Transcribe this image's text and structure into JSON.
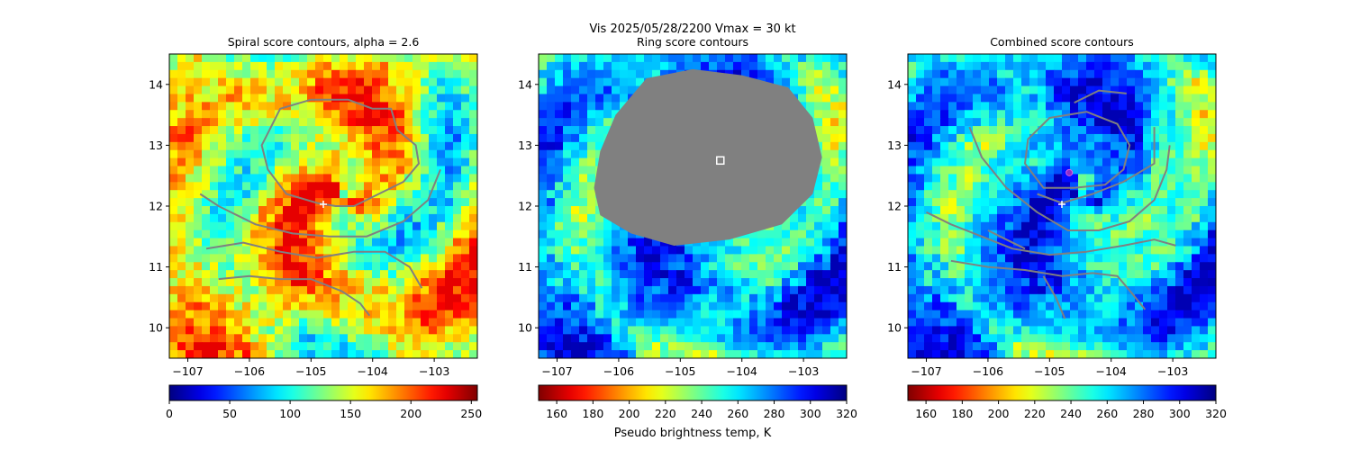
{
  "figure": {
    "suptitle_line1": "Vis  2025/05/28/2200    Vmax = 30 kt",
    "colorbar_label": "Pseudo brightness temp, K"
  },
  "colors": {
    "contour": "#808080",
    "masked_fill": "#808080",
    "center_marker": "#ffffff",
    "circle_marker": "#8b2fc9"
  },
  "chart_data": [
    {
      "type": "heatmap",
      "title": "Spiral score contours, alpha =  2.6",
      "colormap": "jet",
      "xlim": [
        -107.3,
        -102.3
      ],
      "ylim": [
        9.5,
        14.5
      ],
      "x_ticks": [
        -107,
        -106,
        -105,
        -104,
        -103
      ],
      "x_tick_labels": [
        "−107",
        "−106",
        "−105",
        "−104",
        "−103"
      ],
      "y_ticks": [
        10,
        11,
        12,
        13,
        14
      ],
      "y_tick_labels": [
        "10",
        "11",
        "12",
        "13",
        "14"
      ],
      "colorbar": {
        "cmap": "jet",
        "range": [
          0,
          255
        ],
        "ticks": [
          0,
          50,
          100,
          150,
          200,
          250
        ],
        "tick_labels": [
          "0",
          "50",
          "100",
          "150",
          "200",
          "250"
        ]
      },
      "markers": [
        {
          "kind": "plus",
          "lon": -104.8,
          "lat": 12.03
        }
      ],
      "contours": [
        [
          [
            -104.3,
            12.0
          ],
          [
            -103.5,
            12.4
          ],
          [
            -103.25,
            12.7
          ],
          [
            -103.3,
            13.0
          ],
          [
            -103.6,
            13.25
          ],
          [
            -103.7,
            13.6
          ],
          [
            -104.0,
            13.6
          ],
          [
            -104.4,
            13.75
          ],
          [
            -105.0,
            13.75
          ],
          [
            -105.5,
            13.6
          ],
          [
            -105.65,
            13.3
          ],
          [
            -105.8,
            13.0
          ],
          [
            -105.7,
            12.6
          ],
          [
            -105.4,
            12.2
          ],
          [
            -104.9,
            12.05
          ],
          [
            -104.6,
            12.0
          ],
          [
            -104.3,
            12.0
          ]
        ],
        [
          [
            -106.8,
            12.2
          ],
          [
            -106.5,
            12.0
          ],
          [
            -105.9,
            11.7
          ],
          [
            -105.3,
            11.55
          ],
          [
            -104.7,
            11.5
          ],
          [
            -104.1,
            11.5
          ],
          [
            -103.5,
            11.75
          ],
          [
            -103.1,
            12.1
          ],
          [
            -102.9,
            12.6
          ]
        ],
        [
          [
            -106.7,
            11.3
          ],
          [
            -106.1,
            11.4
          ],
          [
            -105.5,
            11.25
          ],
          [
            -104.9,
            11.15
          ],
          [
            -104.3,
            11.25
          ],
          [
            -103.8,
            11.25
          ],
          [
            -103.4,
            11.0
          ],
          [
            -103.2,
            10.65
          ]
        ],
        [
          [
            -106.5,
            10.8
          ],
          [
            -106.0,
            10.85
          ],
          [
            -105.5,
            10.8
          ],
          [
            -105.0,
            10.8
          ],
          [
            -104.5,
            10.6
          ],
          [
            -104.2,
            10.4
          ],
          [
            -104.05,
            10.2
          ]
        ]
      ]
    },
    {
      "type": "heatmap",
      "title": "Ring score contours",
      "colormap": "jet_r",
      "xlim": [
        -107.3,
        -102.3
      ],
      "ylim": [
        9.5,
        14.5
      ],
      "x_ticks": [
        -107,
        -106,
        -105,
        -104,
        -103
      ],
      "x_tick_labels": [
        "−107",
        "−106",
        "−105",
        "−104",
        "−103"
      ],
      "y_ticks": [
        10,
        11,
        12,
        13,
        14
      ],
      "y_tick_labels": [
        "10",
        "11",
        "12",
        "13",
        "14"
      ],
      "colorbar": {
        "cmap": "jet_r",
        "range": [
          150,
          320
        ],
        "ticks": [
          160,
          180,
          200,
          220,
          240,
          260,
          280,
          300,
          320
        ],
        "tick_labels": [
          "160",
          "180",
          "200",
          "220",
          "240",
          "260",
          "280",
          "300",
          "320"
        ]
      },
      "masked_region": [
        [
          -106.4,
          12.3
        ],
        [
          -106.3,
          12.9
        ],
        [
          -106.05,
          13.5
        ],
        [
          -105.55,
          14.1
        ],
        [
          -104.8,
          14.25
        ],
        [
          -104.0,
          14.15
        ],
        [
          -103.25,
          13.95
        ],
        [
          -102.85,
          13.45
        ],
        [
          -102.7,
          12.8
        ],
        [
          -102.85,
          12.2
        ],
        [
          -103.35,
          11.7
        ],
        [
          -104.2,
          11.45
        ],
        [
          -105.1,
          11.35
        ],
        [
          -105.8,
          11.55
        ],
        [
          -106.3,
          11.85
        ]
      ],
      "markers": [
        {
          "kind": "square",
          "lon": -104.35,
          "lat": 12.75
        }
      ],
      "contours": []
    },
    {
      "type": "heatmap",
      "title": "Combined score contours",
      "colormap": "jet_r",
      "xlim": [
        -107.3,
        -102.3
      ],
      "ylim": [
        9.5,
        14.5
      ],
      "x_ticks": [
        -107,
        -106,
        -105,
        -104,
        -103
      ],
      "x_tick_labels": [
        "−107",
        "−106",
        "−105",
        "−104",
        "−103"
      ],
      "y_ticks": [
        10,
        11,
        12,
        13,
        14
      ],
      "y_tick_labels": [
        "10",
        "11",
        "12",
        "13",
        "14"
      ],
      "colorbar": {
        "cmap": "jet_r",
        "range": [
          150,
          320
        ],
        "ticks": [
          160,
          180,
          200,
          220,
          240,
          260,
          280,
          300,
          320
        ],
        "tick_labels": [
          "160",
          "180",
          "200",
          "220",
          "240",
          "260",
          "280",
          "300",
          "320"
        ]
      },
      "markers": [
        {
          "kind": "plus",
          "lon": -104.8,
          "lat": 12.03
        },
        {
          "kind": "circle",
          "lon": -104.68,
          "lat": 12.55
        }
      ],
      "contours": [
        [
          [
            -104.6,
            12.3
          ],
          [
            -104.1,
            12.35
          ],
          [
            -103.8,
            12.6
          ],
          [
            -103.7,
            13.0
          ],
          [
            -103.9,
            13.35
          ],
          [
            -104.4,
            13.55
          ],
          [
            -105.0,
            13.45
          ],
          [
            -105.35,
            13.1
          ],
          [
            -105.4,
            12.7
          ],
          [
            -105.1,
            12.3
          ],
          [
            -104.6,
            12.3
          ]
        ],
        [
          [
            -105.2,
            12.2
          ],
          [
            -104.8,
            12.05
          ],
          [
            -104.3,
            12.2
          ],
          [
            -103.8,
            12.4
          ],
          [
            -103.3,
            12.7
          ],
          [
            -103.3,
            13.3
          ]
        ],
        [
          [
            -106.3,
            13.3
          ],
          [
            -106.1,
            12.8
          ],
          [
            -105.7,
            12.3
          ],
          [
            -105.2,
            11.9
          ],
          [
            -104.7,
            11.6
          ],
          [
            -104.2,
            11.6
          ],
          [
            -103.7,
            11.75
          ],
          [
            -103.3,
            12.1
          ],
          [
            -103.1,
            12.6
          ],
          [
            -103.05,
            13.0
          ]
        ],
        [
          [
            -104.6,
            13.7
          ],
          [
            -104.2,
            13.9
          ],
          [
            -103.75,
            13.85
          ]
        ],
        [
          [
            -107.0,
            11.9
          ],
          [
            -106.6,
            11.7
          ],
          [
            -106.1,
            11.5
          ],
          [
            -105.6,
            11.3
          ],
          [
            -105.0,
            11.2
          ],
          [
            -104.4,
            11.25
          ],
          [
            -103.8,
            11.35
          ],
          [
            -103.3,
            11.45
          ],
          [
            -102.95,
            11.35
          ]
        ],
        [
          [
            -106.6,
            11.1
          ],
          [
            -106.0,
            11.0
          ],
          [
            -105.4,
            10.95
          ],
          [
            -104.8,
            10.85
          ],
          [
            -104.3,
            10.9
          ],
          [
            -103.9,
            10.85
          ],
          [
            -103.65,
            10.55
          ],
          [
            -103.45,
            10.3
          ]
        ],
        [
          [
            -106.0,
            11.6
          ],
          [
            -105.7,
            11.45
          ],
          [
            -105.4,
            11.3
          ]
        ],
        [
          [
            -105.1,
            10.85
          ],
          [
            -104.9,
            10.5
          ],
          [
            -104.75,
            10.15
          ]
        ]
      ]
    }
  ]
}
